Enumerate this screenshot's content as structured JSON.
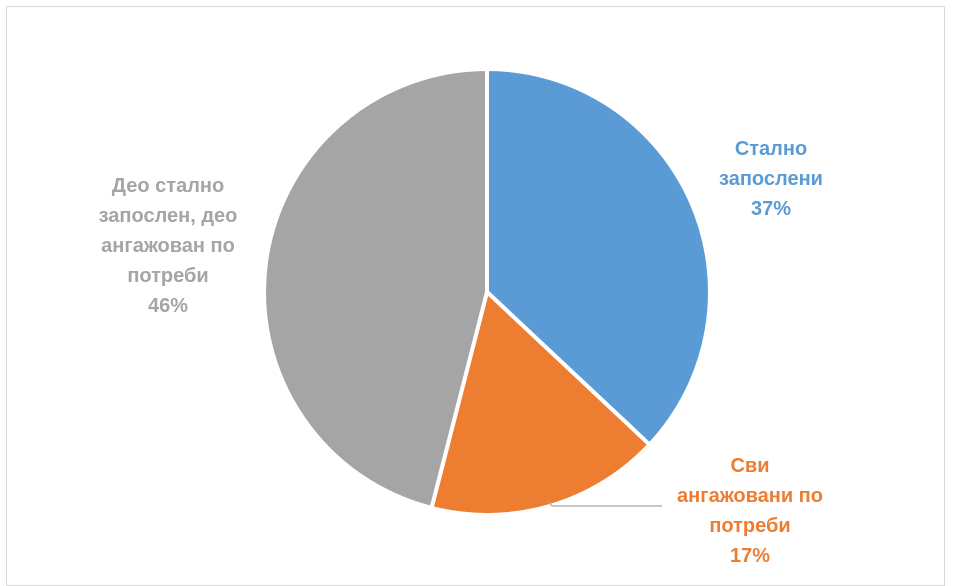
{
  "chart_data": {
    "type": "pie",
    "title": "",
    "start_angle_deg": 0,
    "slices": [
      {
        "label_lines": [
          "Стално",
          "запослени"
        ],
        "label": "Стално запослени",
        "value": 37,
        "value_label": "37%",
        "color": "#5b9bd5"
      },
      {
        "label_lines": [
          "Сви",
          "ангажовани по",
          "потреби"
        ],
        "label": "Сви ангажовани по потреби",
        "value": 17,
        "value_label": "17%",
        "color": "#ed7d31"
      },
      {
        "label_lines": [
          "Део стално",
          "запослен, део",
          "ангажован по",
          "потреби"
        ],
        "label": "Део стално запослен, део ангажован по потреби",
        "value": 46,
        "value_label": "46%",
        "color": "#a5a5a5"
      }
    ],
    "legend": "none",
    "data_labels": "outside"
  }
}
